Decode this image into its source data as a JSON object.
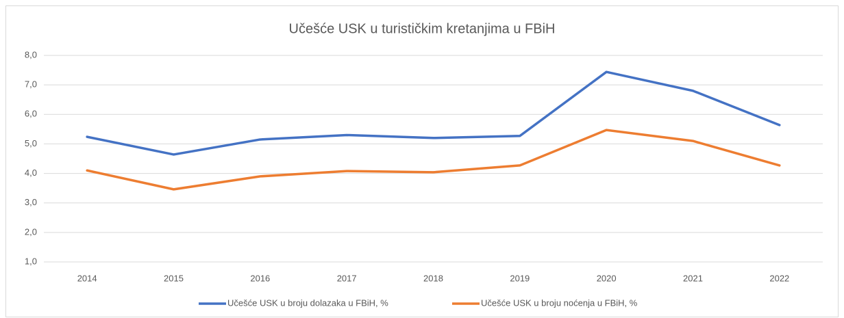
{
  "chart_data": {
    "type": "line",
    "title": "Učešće USK u turističkim kretanjima u FBiH",
    "categories": [
      "2014",
      "2015",
      "2016",
      "2017",
      "2018",
      "2019",
      "2020",
      "2021",
      "2022"
    ],
    "series": [
      {
        "name": "Učešće USK u broju dolazaka u FBiH, %",
        "color": "#4472c4",
        "values": [
          5.24,
          4.64,
          5.15,
          5.3,
          5.2,
          5.27,
          7.44,
          6.8,
          5.64
        ]
      },
      {
        "name": "Učešće USK u broju noćenja u FBiH, %",
        "color": "#ed7d31",
        "values": [
          4.1,
          3.46,
          3.9,
          4.08,
          4.04,
          4.27,
          5.47,
          5.1,
          4.27
        ]
      }
    ],
    "ylim": [
      1,
      8
    ],
    "yticks": [
      {
        "value": 1,
        "label": "1,0"
      },
      {
        "value": 2,
        "label": "2,0"
      },
      {
        "value": 3,
        "label": "3,0"
      },
      {
        "value": 4,
        "label": "4,0"
      },
      {
        "value": 5,
        "label": "5,0"
      },
      {
        "value": 6,
        "label": "6,0"
      },
      {
        "value": 7,
        "label": "7,0"
      },
      {
        "value": 8,
        "label": "8,0"
      }
    ],
    "grid": true,
    "legend": "bottom"
  }
}
